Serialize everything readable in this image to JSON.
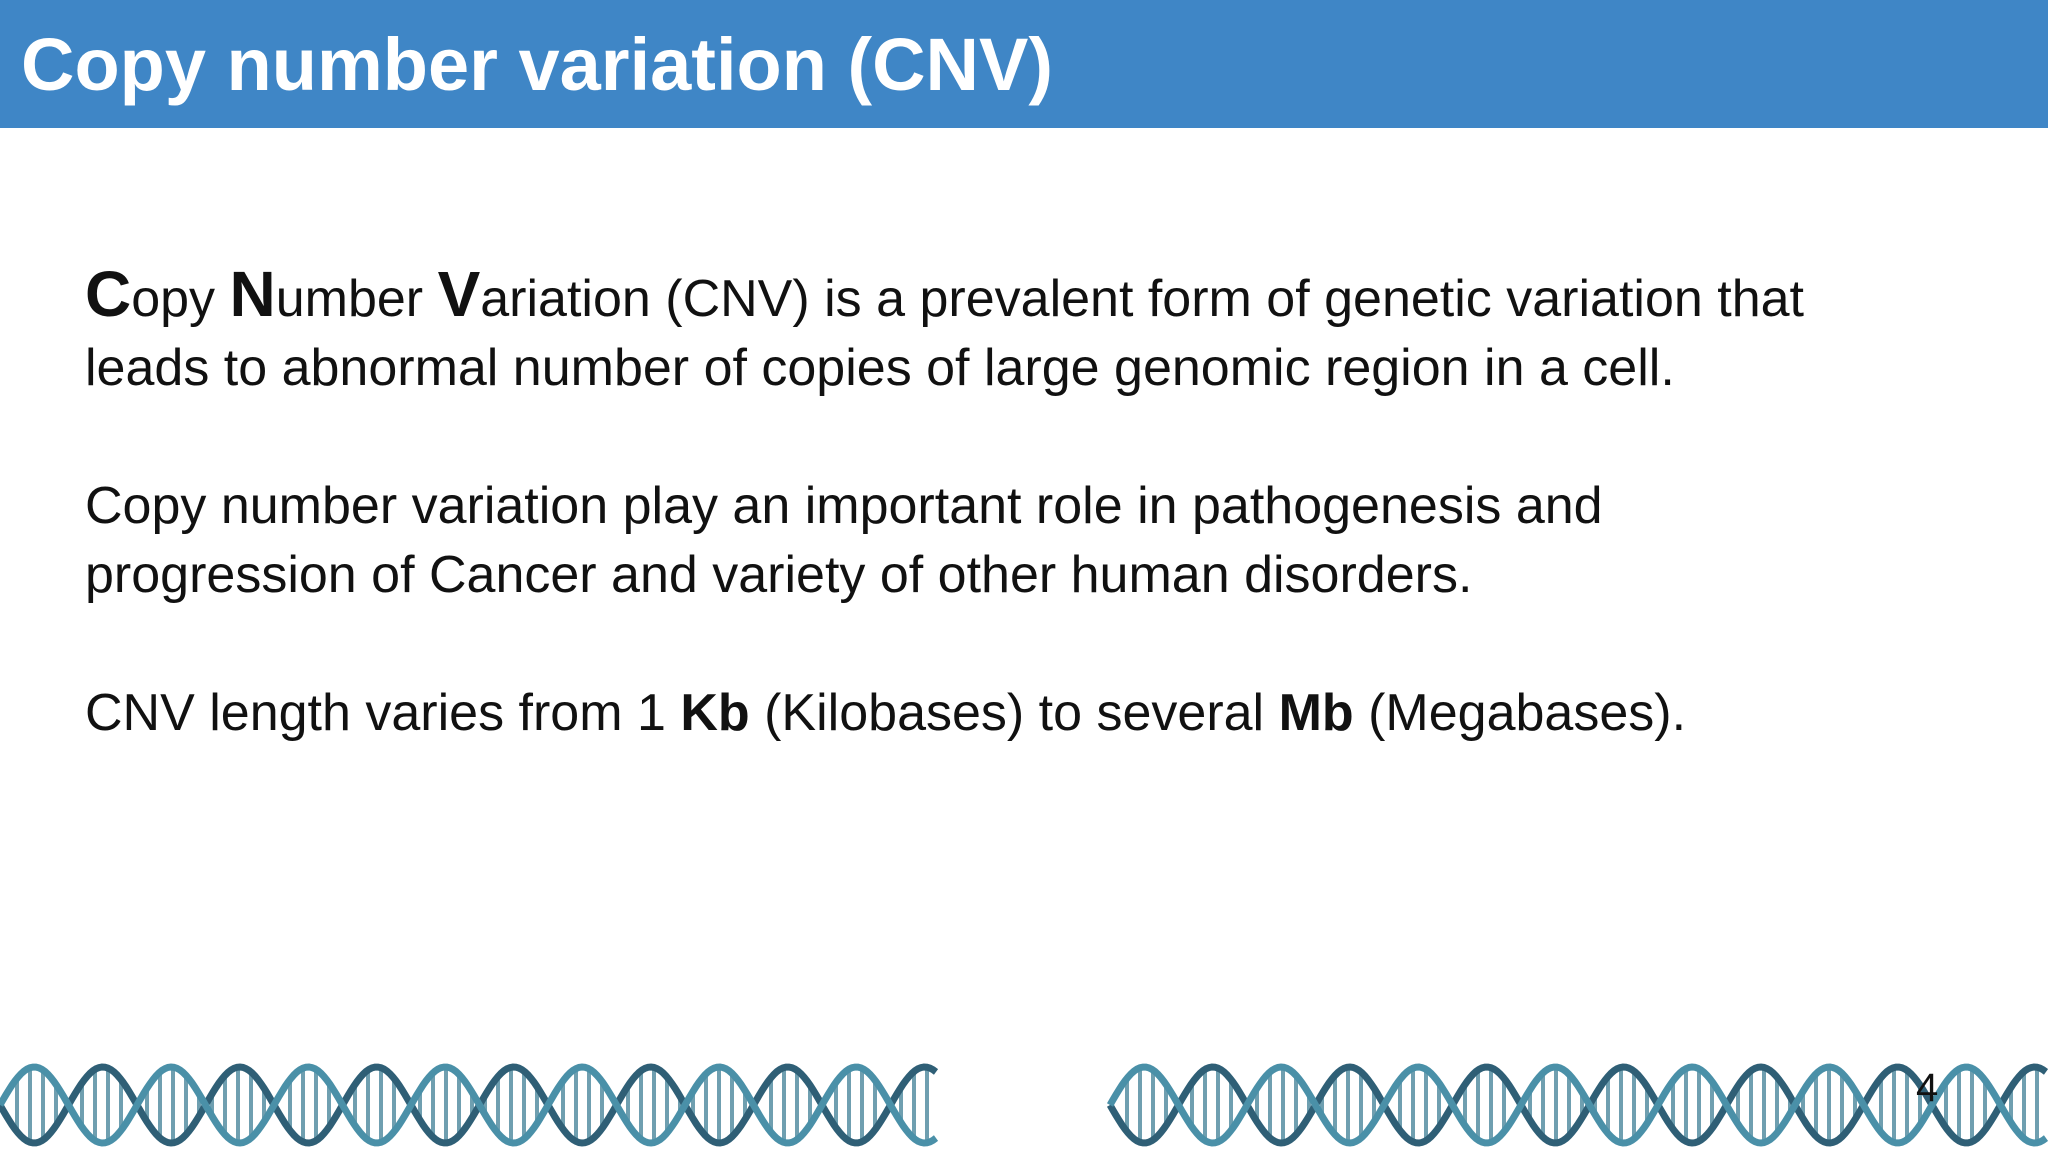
{
  "header": {
    "title": "Copy number variation (CNV)"
  },
  "paragraphs": [
    {
      "runs": [
        {
          "text": "C",
          "bold": true
        },
        {
          "text": "opy "
        },
        {
          "text": "N",
          "bold": true
        },
        {
          "text": "umber "
        },
        {
          "text": "V",
          "bold": true
        },
        {
          "text": "ariation (CNV) is a prevalent form of genetic variation that leads to abnormal number of copies of large genomic region in a cell."
        }
      ]
    },
    {
      "runs": [
        {
          "text": "Copy number variation play an important role in pathogenesis and progression of Cancer and variety of other human disorders."
        }
      ]
    },
    {
      "runs": [
        {
          "text": "CNV length varies from 1 "
        },
        {
          "text": "Kb",
          "bold": true
        },
        {
          "text": " (Kilobases) to several "
        },
        {
          "text": "Mb",
          "bold": true
        },
        {
          "text": " (Megabases)."
        }
      ]
    }
  ],
  "page_number": "4"
}
